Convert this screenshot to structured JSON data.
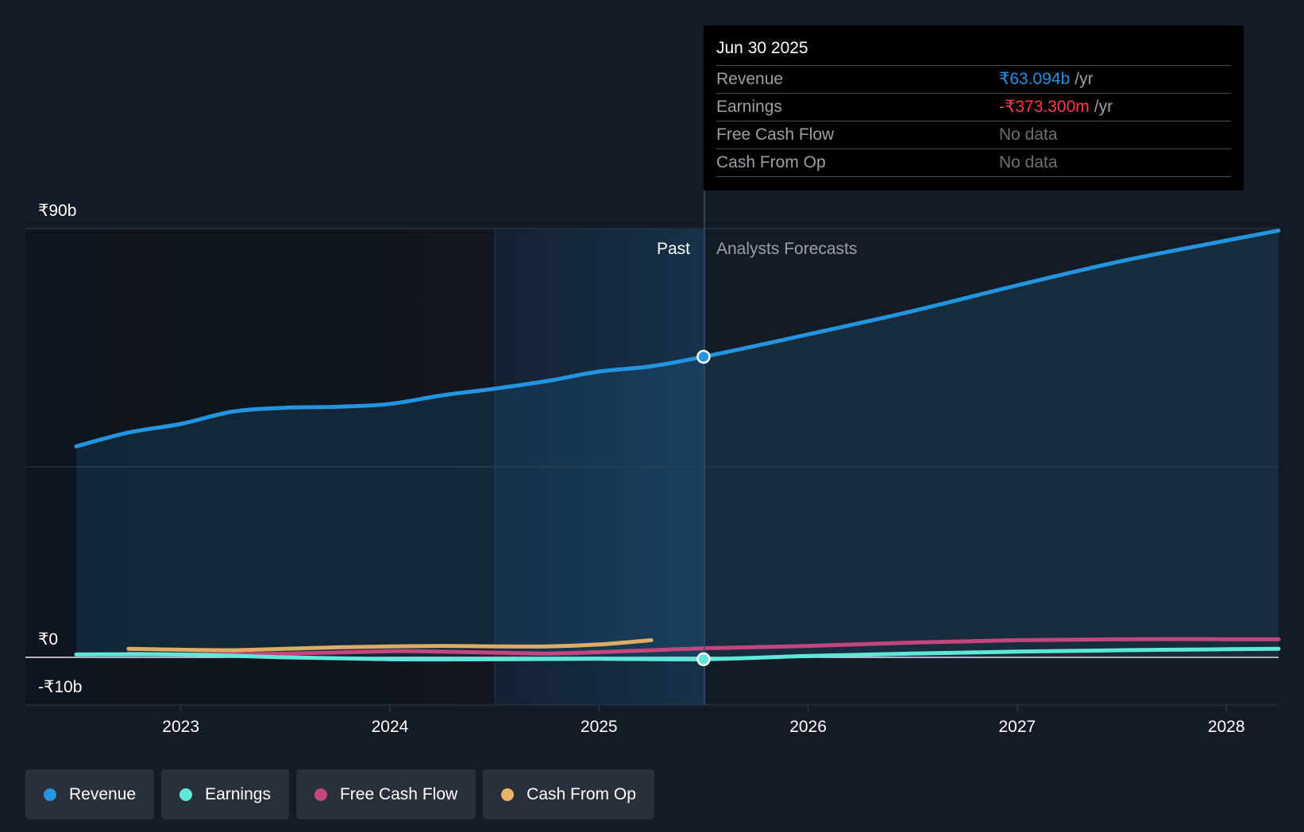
{
  "chart_data": {
    "type": "area",
    "y_axis": {
      "min": -10,
      "max": 90,
      "tick_labels": [
        "₹90b",
        "₹0",
        "-₹10b"
      ]
    },
    "x_axis": {
      "min": 2022.5,
      "max": 2028.25,
      "tick_labels": [
        "2023",
        "2024",
        "2025",
        "2026",
        "2027",
        "2028"
      ]
    },
    "regions": {
      "past_label": "Past",
      "forecast_label": "Analysts Forecasts",
      "divider_x": 2025.5
    },
    "series": [
      {
        "name": "Revenue",
        "color": "#2394df",
        "x": [
          2022.5,
          2022.75,
          2023.0,
          2023.25,
          2023.5,
          2023.75,
          2024.0,
          2024.25,
          2024.5,
          2024.75,
          2025.0,
          2025.25,
          2025.5,
          2025.75,
          2026.0,
          2026.5,
          2027.0,
          2027.5,
          2028.0,
          2028.25
        ],
        "y": [
          44.3,
          47.2,
          49.0,
          51.6,
          52.4,
          52.6,
          53.2,
          55.0,
          56.4,
          58.0,
          60.0,
          61.1,
          63.1,
          65.4,
          67.8,
          72.7,
          78.1,
          83.2,
          87.5,
          89.6
        ]
      },
      {
        "name": "Earnings",
        "color": "#5de8d8",
        "x": [
          2022.5,
          2023.0,
          2023.5,
          2024.0,
          2024.5,
          2025.0,
          2025.5,
          2026.0,
          2026.5,
          2027.0,
          2027.5,
          2028.0,
          2028.25
        ],
        "y": [
          0.6,
          0.6,
          0.0,
          -0.4,
          -0.4,
          -0.3,
          -0.4,
          0.3,
          0.8,
          1.2,
          1.5,
          1.7,
          1.8
        ]
      },
      {
        "name": "Free Cash Flow",
        "color": "#c4467f",
        "x": [
          2022.75,
          2023.0,
          2023.5,
          2024.0,
          2024.25,
          2024.5,
          2024.75,
          2025.0,
          2025.25,
          2025.5,
          2026.0,
          2026.5,
          2027.0,
          2027.5,
          2028.0,
          2028.25
        ],
        "y": [
          0.8,
          0.6,
          0.8,
          1.3,
          1.2,
          1.0,
          0.8,
          1.1,
          1.5,
          1.9,
          2.4,
          3.1,
          3.6,
          3.8,
          3.8,
          3.8
        ]
      },
      {
        "name": "Cash From Op",
        "color": "#e8b366",
        "x": [
          2022.75,
          2023.0,
          2023.25,
          2023.5,
          2023.75,
          2024.0,
          2024.25,
          2024.5,
          2024.75,
          2025.0,
          2025.25
        ],
        "y": [
          1.8,
          1.6,
          1.5,
          1.8,
          2.1,
          2.3,
          2.4,
          2.3,
          2.3,
          2.7,
          3.6
        ]
      }
    ]
  },
  "tooltip": {
    "date": "Jun 30 2025",
    "rows": [
      {
        "label": "Revenue",
        "value": "₹63.094b",
        "unit": "/yr",
        "value_color": "#2394df"
      },
      {
        "label": "Earnings",
        "value": "-₹373.300m",
        "unit": "/yr",
        "value_color": "#ff3b4e"
      },
      {
        "label": "Free Cash Flow",
        "value": "No data"
      },
      {
        "label": "Cash From Op",
        "value": "No data"
      }
    ]
  },
  "legend": [
    {
      "label": "Revenue",
      "color": "#2394df"
    },
    {
      "label": "Earnings",
      "color": "#5de8d8"
    },
    {
      "label": "Free Cash Flow",
      "color": "#c4467f"
    },
    {
      "label": "Cash From Op",
      "color": "#e8b366"
    }
  ]
}
